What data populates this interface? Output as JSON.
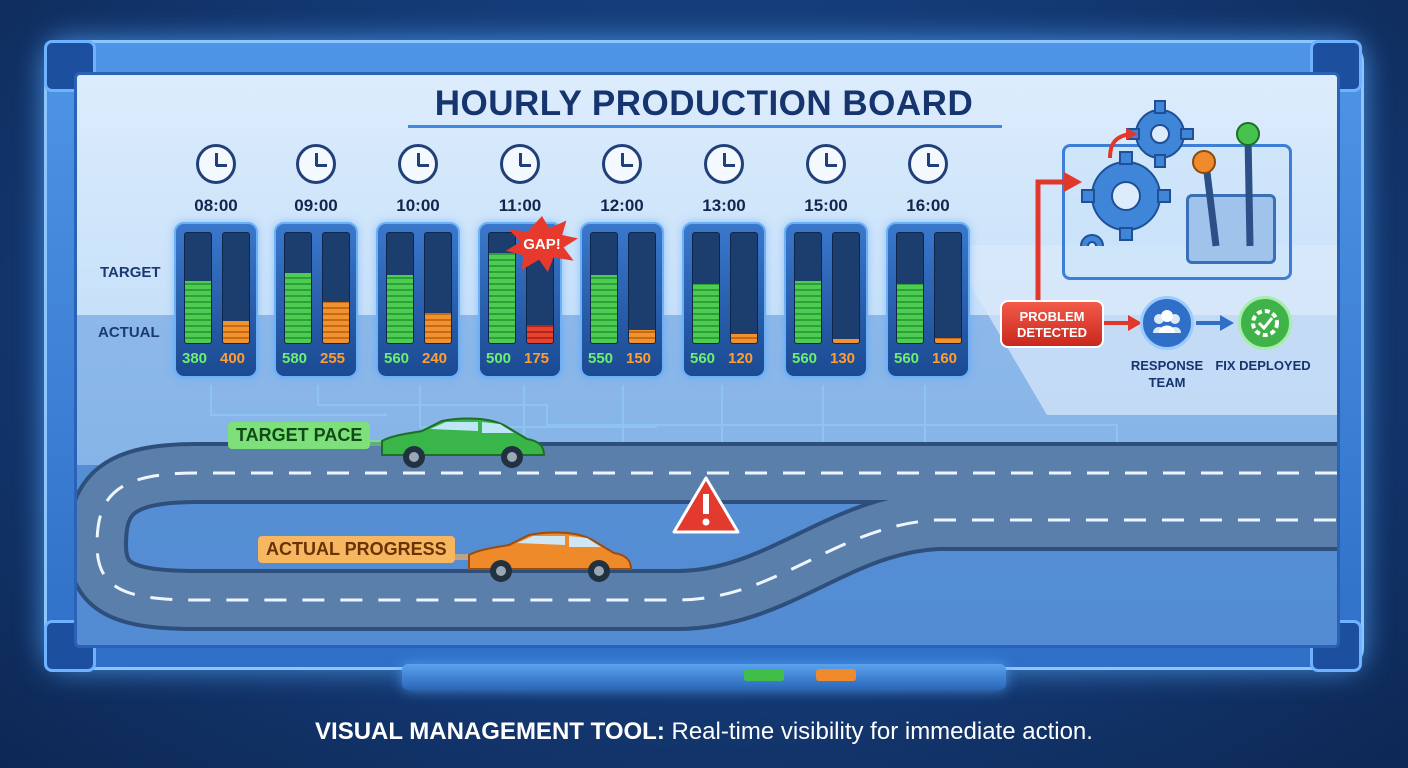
{
  "title": "HOURLY PRODUCTION BOARD",
  "labels": {
    "target": "TARGET",
    "actual": "ACTUAL"
  },
  "hours": [
    {
      "time": "08:00",
      "target": "380",
      "actual": "400",
      "target_level": 0.56,
      "actual_level": 0.2
    },
    {
      "time": "09:00",
      "target": "580",
      "actual": "255",
      "target_level": 0.64,
      "actual_level": 0.37
    },
    {
      "time": "10:00",
      "target": "560",
      "actual": "240",
      "target_level": 0.62,
      "actual_level": 0.27
    },
    {
      "time": "11:00",
      "target": "500",
      "actual": "175",
      "target_level": 0.82,
      "actual_level": 0.16,
      "gap": true
    },
    {
      "time": "12:00",
      "target": "550",
      "actual": "150",
      "target_level": 0.62,
      "actual_level": 0.12
    },
    {
      "time": "13:00",
      "target": "560",
      "actual": "120",
      "target_level": 0.54,
      "actual_level": 0.08
    },
    {
      "time": "15:00",
      "target": "560",
      "actual": "130",
      "target_level": 0.56,
      "actual_level": 0.04
    },
    {
      "time": "16:00",
      "target": "560",
      "actual": "160",
      "target_level": 0.54,
      "actual_level": 0.05
    }
  ],
  "gap_label": "GAP!",
  "road": {
    "target_label": "TARGET PACE",
    "actual_label": "ACTUAL PROGRESS"
  },
  "flow": {
    "problem": "PROBLEM DETECTED",
    "response": "RESPONSE TEAM",
    "fix": "FIX DEPLOYED"
  },
  "footer": {
    "bold": "VISUAL MANAGEMENT TOOL:",
    "text": " Real-time visibility for immediate action."
  },
  "colors": {
    "target": "#4ccd52",
    "actual": "#f0932f",
    "gap": "#e6432f",
    "frame": "#2f6fc7",
    "board": "#c6e0f9"
  },
  "icons": [
    "clock-icon",
    "gear-icon",
    "warning-icon",
    "team-icon",
    "fix-icon",
    "lever-icon"
  ]
}
